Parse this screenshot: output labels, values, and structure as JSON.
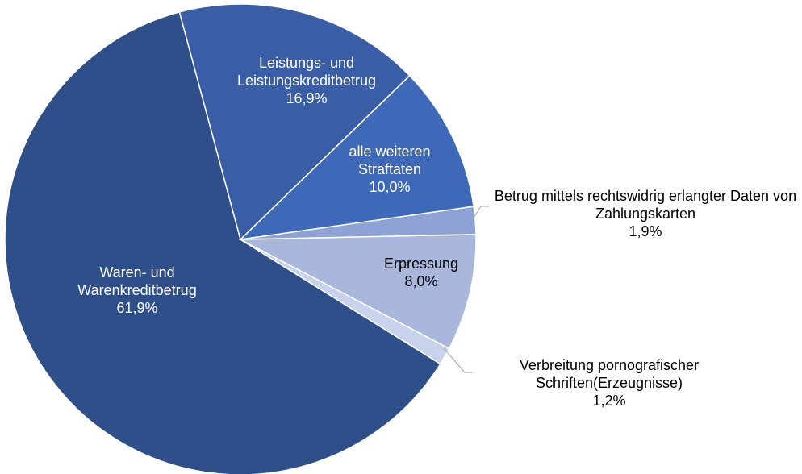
{
  "chart_data": {
    "type": "pie",
    "categories": [
      "Leistungs- und Leistungskreditbetrug",
      "alle weiteren Straftaten",
      "Betrug mittels rechtswidrig erlangter Daten von Zahlungskarten",
      "Erpressung",
      "Verbreitung pornografischer Schriften(Erzeugnisse)",
      "Waren- und Warenkreditbetrug"
    ],
    "values": [
      16.9,
      10.0,
      1.9,
      8.0,
      1.2,
      61.9
    ],
    "value_labels": [
      "16,9%",
      "10,0%",
      "1,9%",
      "8,0%",
      "1,2%",
      "61,9%"
    ],
    "colors": [
      "#3a5ea6",
      "#3e69b9",
      "#8ea2d6",
      "#a9b7dd",
      "#c8d2ec",
      "#2f4f8a"
    ]
  }
}
